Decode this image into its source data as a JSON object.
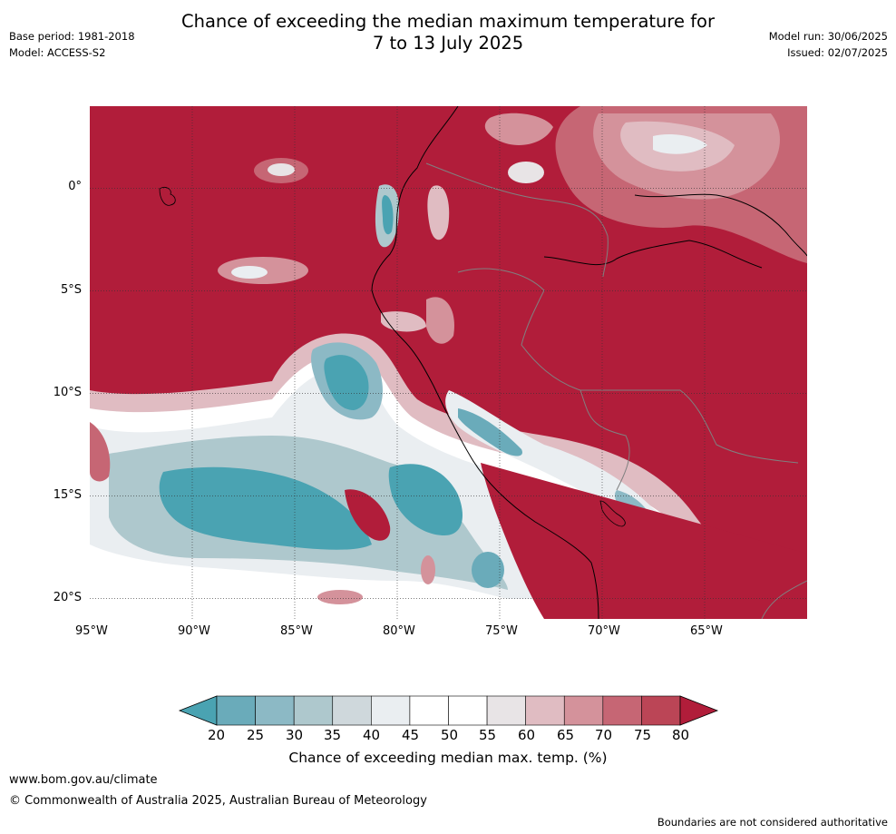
{
  "title": {
    "line1": "Chance of exceeding the median maximum temperature for",
    "line2": "7 to 13 July 2025"
  },
  "meta_left": {
    "base_period": "Base period: 1981-2018",
    "model": "Model: ACCESS-S2"
  },
  "meta_right": {
    "model_run": "Model run: 30/06/2025",
    "issued": "Issued: 02/07/2025"
  },
  "map": {
    "lon_ticks": [
      "95°W",
      "90°W",
      "85°W",
      "80°W",
      "75°W",
      "70°W",
      "65°W"
    ],
    "lat_ticks": [
      "0°",
      "5°S",
      "10°S",
      "15°S",
      "20°S"
    ],
    "extent": {
      "lon_min": -95,
      "lon_max": -60,
      "lat_min": -21,
      "lat_max": 4
    },
    "gridlines": true
  },
  "colorbar": {
    "ticks": [
      "20",
      "25",
      "30",
      "35",
      "40",
      "45",
      "50",
      "55",
      "60",
      "65",
      "70",
      "75",
      "80"
    ],
    "colors": [
      "#4aa3b2",
      "#6aabba",
      "#8cb9c5",
      "#aec8cd",
      "#cfd8dc",
      "#eaeef1",
      "#ffffff",
      "#ffffff",
      "#e8e4e6",
      "#e0bcc2",
      "#d4929b",
      "#c66674",
      "#bb4556",
      "#b11d3a"
    ],
    "label": "Chance of exceeding median max. temp. (%)",
    "extends": "both"
  },
  "footer": {
    "url": "www.bom.gov.au/climate",
    "copyright": "© Commonwealth of Australia 2025, Australian Bureau of Meteorology",
    "disclaimer": "Boundaries are not considered authoritative"
  }
}
